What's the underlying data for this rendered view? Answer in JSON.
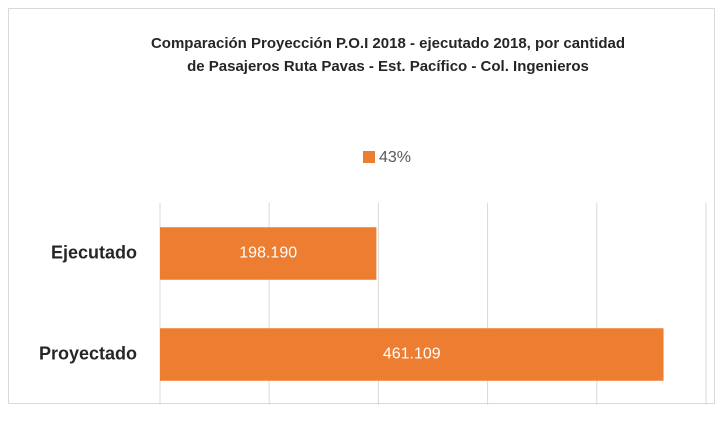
{
  "chart_data": {
    "type": "bar",
    "orientation": "horizontal",
    "title": "Comparación Proyección P.O.I 2018 -  ejecutado 2018, por cantidad de Pasajeros  Ruta Pavas - Est. Pacífico - Col. Ingenieros",
    "categories": [
      "Ejecutado",
      "Proyectado"
    ],
    "series": [
      {
        "name": "43%",
        "color": "#ed7d31",
        "values": [
          198190,
          461109
        ],
        "value_labels": [
          "198.190",
          "461.109"
        ]
      }
    ],
    "xlim": [
      0,
      500000
    ],
    "xticks": [
      0,
      100000,
      200000,
      300000,
      400000,
      500000
    ],
    "grid": true,
    "legend": "top"
  }
}
